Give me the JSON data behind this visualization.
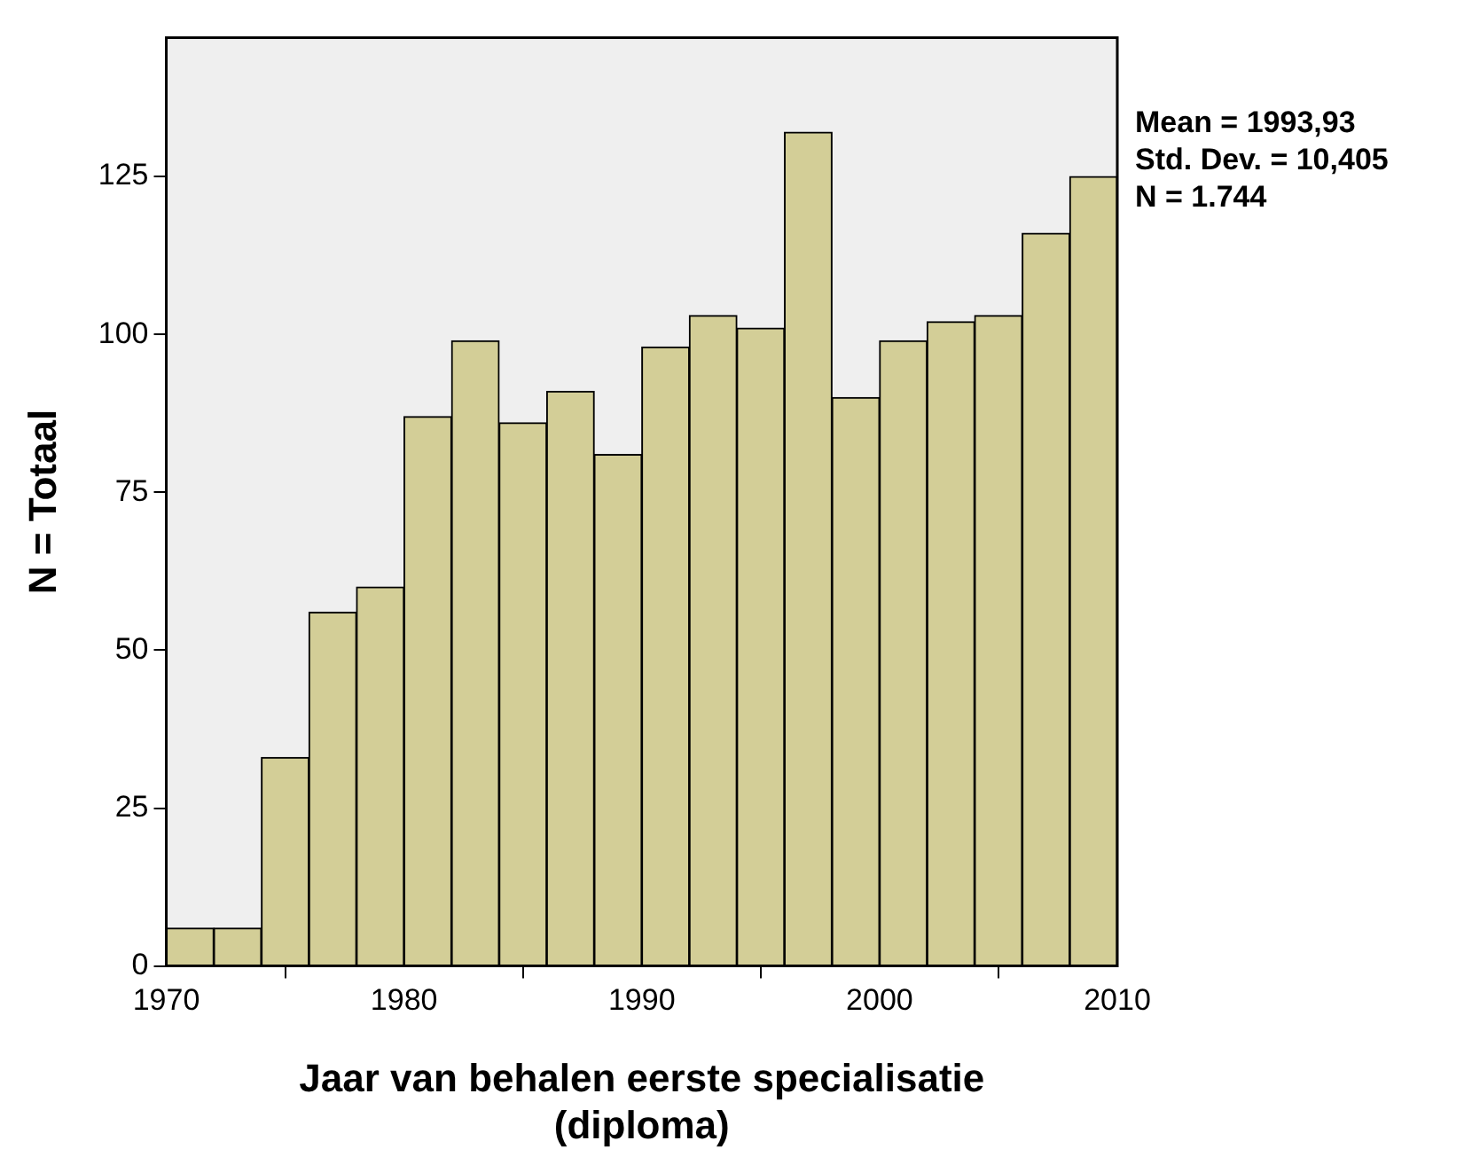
{
  "chart_data": {
    "type": "histogram",
    "xlabel": "Jaar van behalen eerste specialisatie\n(diploma)",
    "ylabel": "N = Totaal",
    "bins": [
      1970,
      1972,
      1974,
      1976,
      1978,
      1980,
      1982,
      1984,
      1986,
      1988,
      1990,
      1992,
      1994,
      1996,
      1998,
      2000,
      2002,
      2004,
      2006,
      2008,
      2010
    ],
    "values": [
      6,
      6,
      33,
      56,
      60,
      87,
      99,
      86,
      91,
      81,
      98,
      103,
      101,
      132,
      90,
      99,
      102,
      103,
      116,
      125
    ],
    "color": "#d3ce97",
    "xlim": [
      1970,
      2010
    ],
    "xticks": [
      1970,
      1980,
      1990,
      2000,
      2010
    ],
    "ylim": [
      0,
      147
    ],
    "yticks": [
      0,
      25,
      50,
      75,
      100,
      125
    ],
    "grid": false,
    "legend": false,
    "annotations": [
      "Mean = 1993,93",
      "Std. Dev. = 10,405",
      "N = 1.744"
    ]
  }
}
